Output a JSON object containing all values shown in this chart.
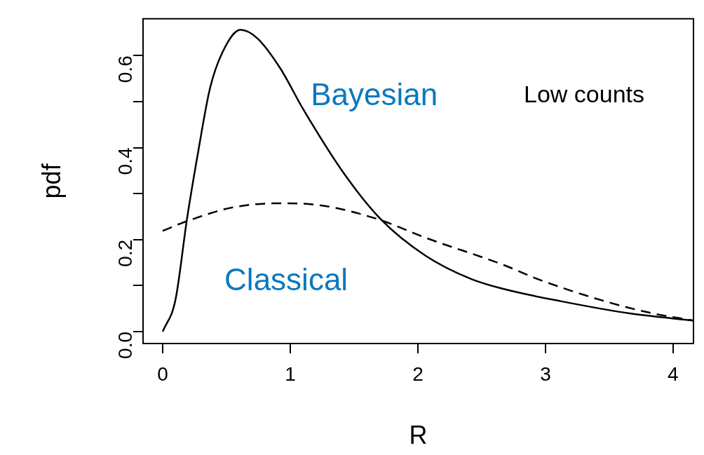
{
  "chart_data": {
    "type": "line",
    "xlabel": "R",
    "ylabel": "pdf",
    "xlim": [
      -0.154,
      4.16
    ],
    "xticks": [
      0,
      1,
      2,
      3,
      4
    ],
    "ylim": [
      -0.026,
      0.68
    ],
    "yticks": [
      {
        "value": 0,
        "label": "0.0"
      },
      {
        "value": 0.1,
        "label": null
      },
      {
        "value": 0.2,
        "label": "0.2"
      },
      {
        "value": 0.3,
        "label": null
      },
      {
        "value": 0.4,
        "label": "0.4"
      },
      {
        "value": 0.5,
        "label": null
      },
      {
        "value": 0.6,
        "label": "0.6"
      }
    ],
    "grid": false,
    "legend": false,
    "marker": "none",
    "series": [
      {
        "name": "Bayesian",
        "color": "#000000",
        "line_style": "solid",
        "x": [
          0,
          0.1,
          0.19,
          0.28,
          0.37,
          0.47,
          0.61,
          0.74,
          0.92,
          1.1,
          1.42,
          1.71,
          2.06,
          2.42,
          2.68,
          3.12,
          3.67,
          4.16
        ],
        "values": [
          0,
          0.069,
          0.244,
          0.394,
          0.528,
          0.608,
          0.656,
          0.638,
          0.573,
          0.484,
          0.344,
          0.244,
          0.165,
          0.114,
          0.092,
          0.066,
          0.039,
          0.024
        ]
      },
      {
        "name": "Classical",
        "color": "#000000",
        "line_style": "dashed",
        "x": [
          0,
          0.19,
          0.55,
          0.92,
          1.25,
          1.69,
          2.06,
          2.68,
          2.94,
          3.49,
          3.85,
          4.16
        ],
        "values": [
          0.219,
          0.24,
          0.27,
          0.279,
          0.274,
          0.244,
          0.204,
          0.144,
          0.114,
          0.064,
          0.039,
          0.024
        ]
      }
    ],
    "annotations": [
      "Low counts"
    ]
  }
}
